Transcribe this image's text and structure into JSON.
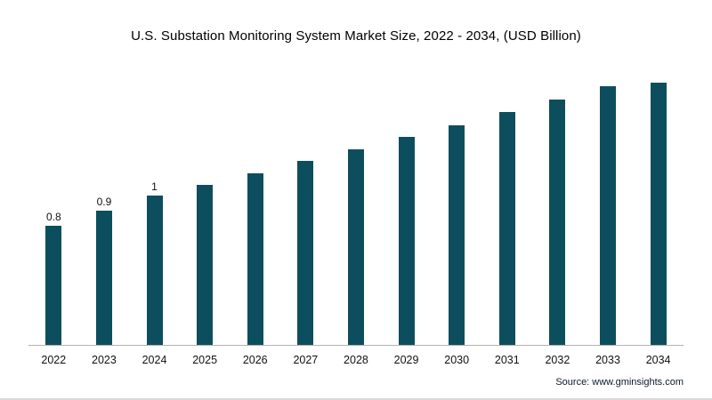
{
  "title": "U.S. Substation Monitoring System Market Size, 2022 - 2034, (USD Billion)",
  "source_label": "Source: www.gminsights.com",
  "chart_data": {
    "type": "bar",
    "title": "U.S. Substation Monitoring System Market Size, 2022 - 2034, (USD Billion)",
    "categories": [
      "2022",
      "2023",
      "2024",
      "2025",
      "2026",
      "2027",
      "2028",
      "2029",
      "2030",
      "2031",
      "2032",
      "2033",
      "2034"
    ],
    "values": [
      0.8,
      0.9,
      1.0,
      1.07,
      1.15,
      1.23,
      1.31,
      1.39,
      1.47,
      1.56,
      1.64,
      1.73,
      1.82
    ],
    "data_labels": [
      "0.8",
      "0.9",
      "1",
      "",
      "",
      "",
      "",
      "",
      "",
      "",
      "",
      "",
      ""
    ],
    "bar_color": "#0d4e5e",
    "axis_line_color": "#b3b3b3",
    "xlabel": "",
    "ylabel": "",
    "ylim": [
      0,
      1.85
    ],
    "grid": false,
    "legend": false,
    "source": "Source: www.gminsights.com"
  }
}
